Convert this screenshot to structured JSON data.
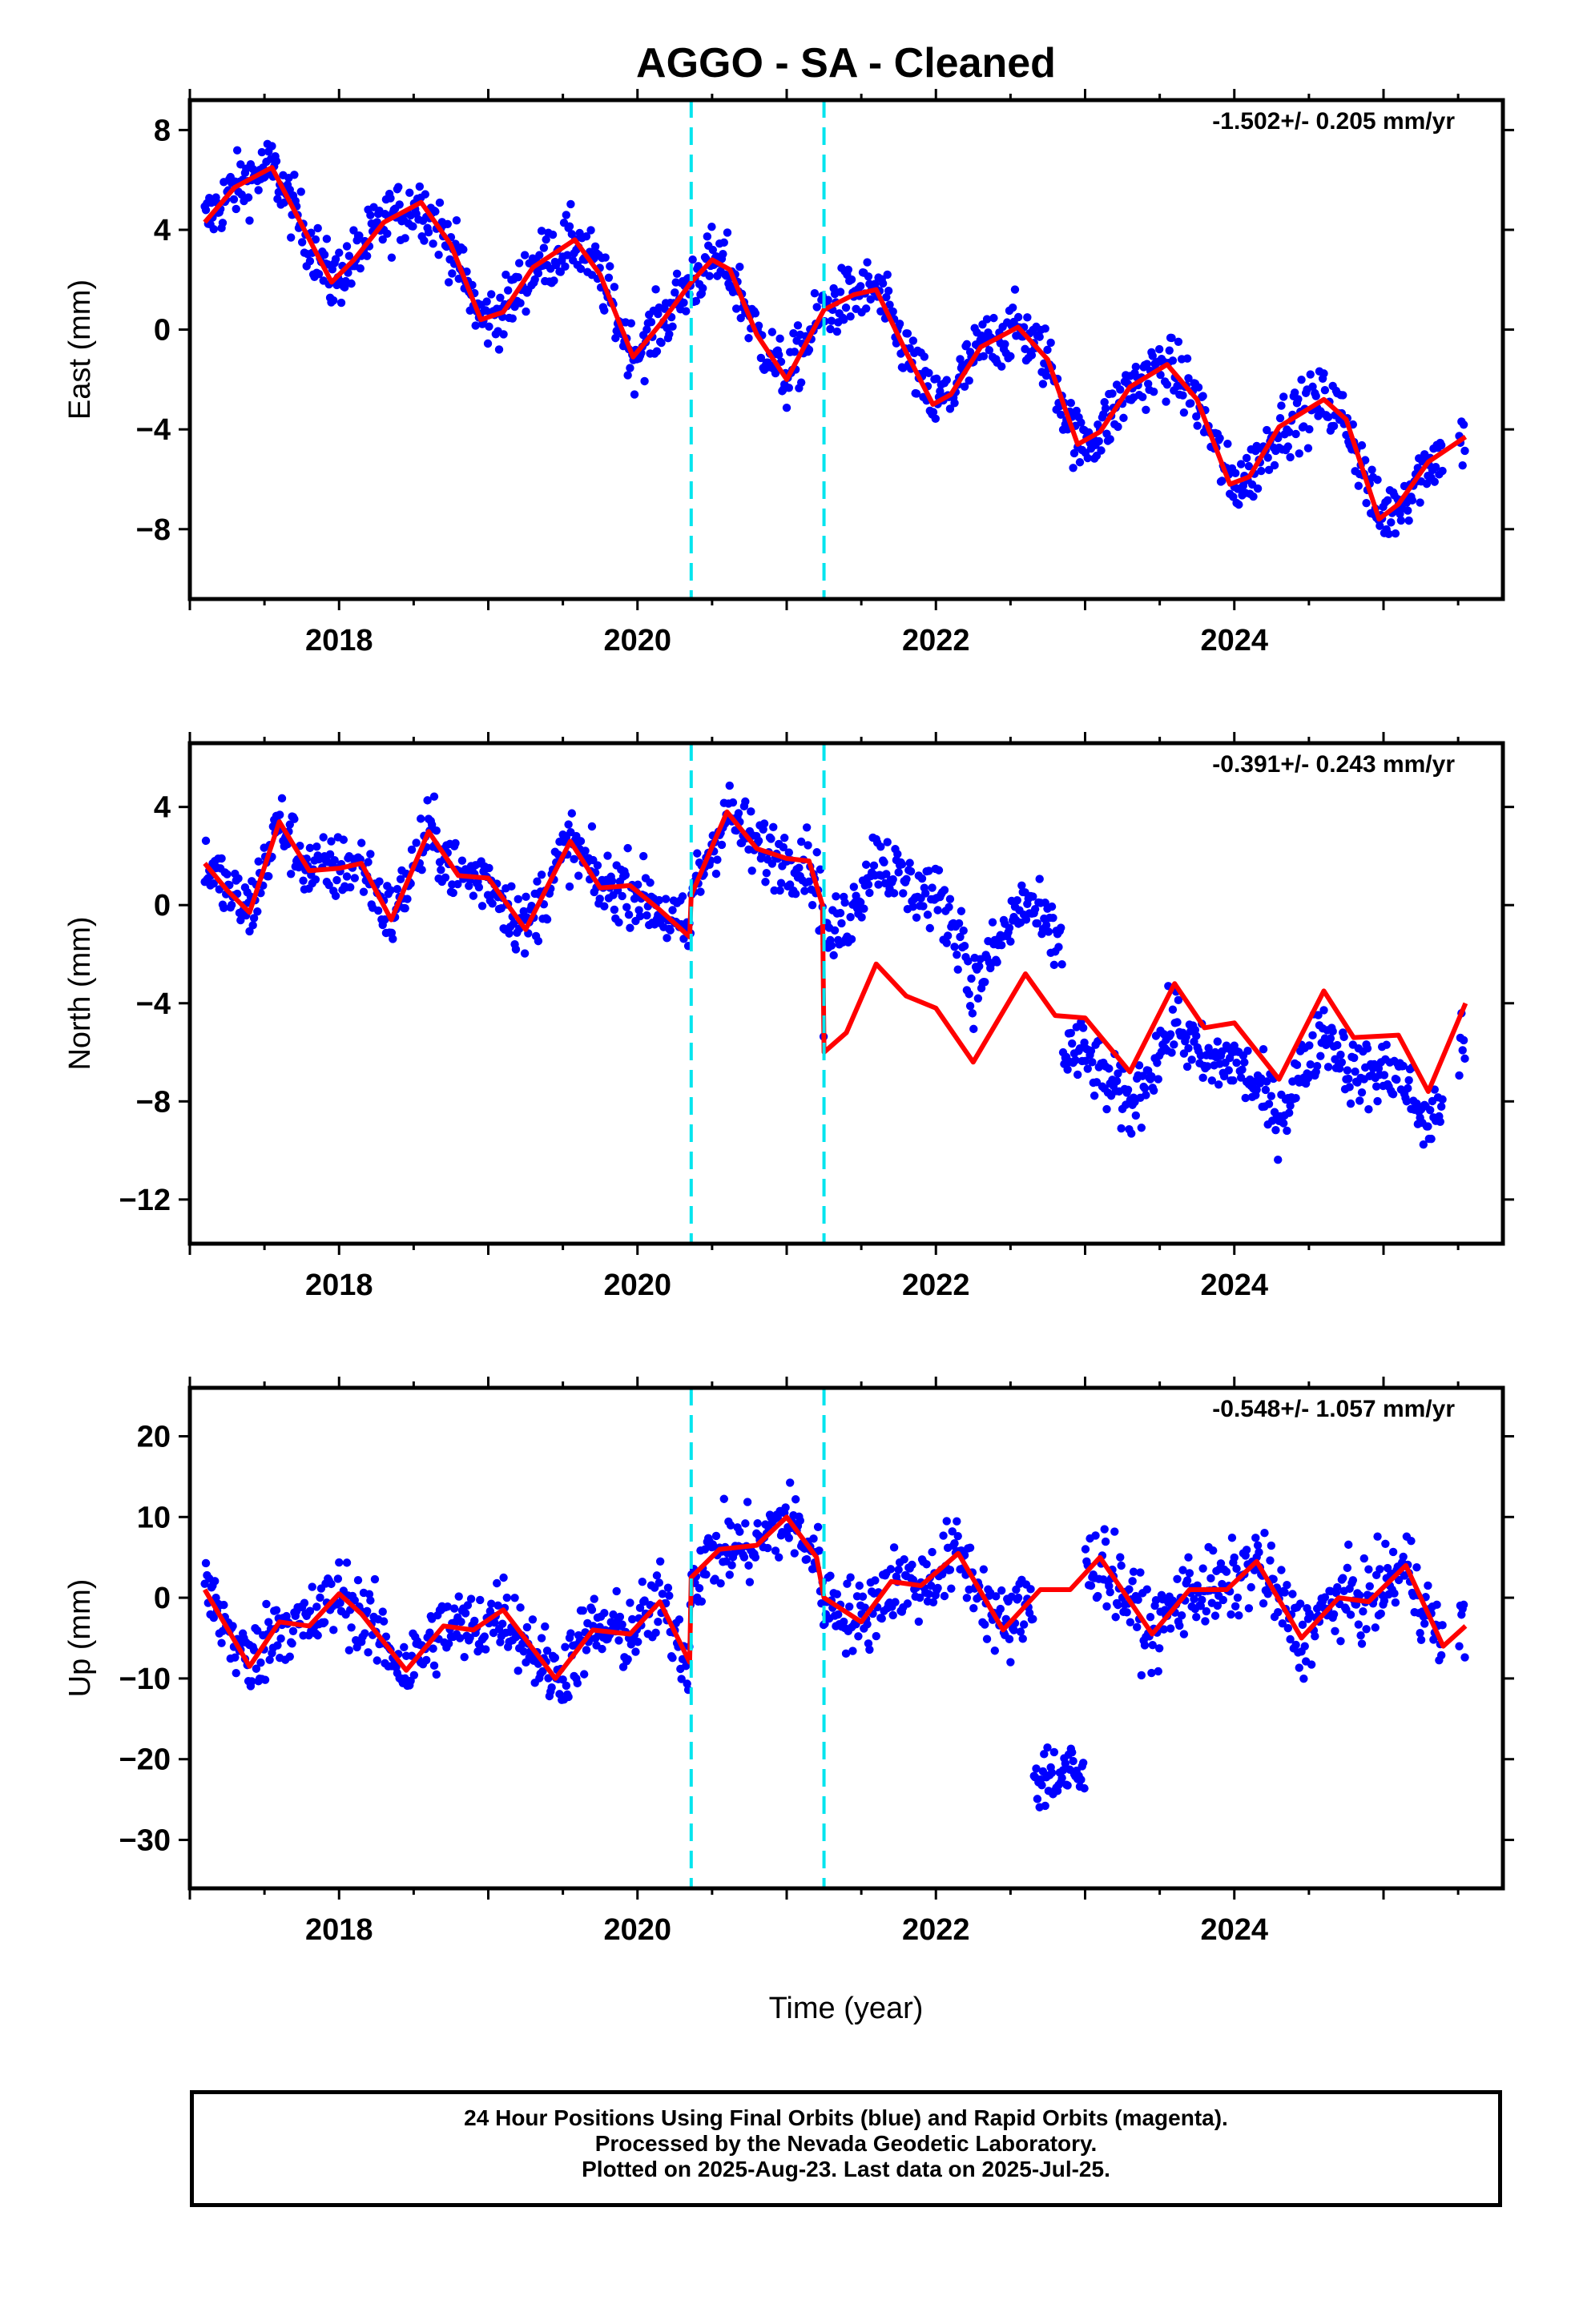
{
  "title": "AGGO  - SA - Cleaned",
  "xlabel": "Time (year)",
  "footer": {
    "line1": "24 Hour Positions Using Final Orbits (blue) and Rapid Orbits (magenta).",
    "line2": "Processed by the Nevada Geodetic Laboratory.",
    "line3": "Plotted on 2025-Aug-23. Last data on 2025-Jul-25."
  },
  "colors": {
    "data": "#0000ff",
    "model": "#ff0000",
    "steps": "#00e5ee"
  },
  "chart_data": [
    {
      "type": "scatter",
      "ylabel": "East (mm)",
      "rate_label": "-1.502+/- 0.205 mm/yr",
      "xlim": [
        2017.0,
        2025.8
      ],
      "ylim": [
        -10.8,
        9.2
      ],
      "x_ticks": [
        2018,
        2020,
        2022,
        2024
      ],
      "y_ticks": [
        8,
        4,
        0,
        -4,
        -8
      ],
      "y_tick_labels": [
        "8",
        "4",
        "0",
        "−4",
        "−8"
      ],
      "step_epochs": [
        2020.36,
        2021.25
      ],
      "model": {
        "x": [
          2017.1,
          2017.3,
          2017.55,
          2017.75,
          2017.95,
          2018.1,
          2018.3,
          2018.55,
          2018.75,
          2018.95,
          2019.1,
          2019.3,
          2019.58,
          2019.75,
          2019.97,
          2020.15,
          2020.36,
          2020.5,
          2020.62,
          2020.8,
          2021.0,
          2021.25,
          2021.45,
          2021.6,
          2021.8,
          2021.98,
          2022.1,
          2022.3,
          2022.55,
          2022.75,
          2022.95,
          2023.1,
          2023.3,
          2023.55,
          2023.75,
          2023.97,
          2024.1,
          2024.3,
          2024.6,
          2024.75,
          2024.97,
          2025.1,
          2025.3,
          2025.55
        ],
        "y": [
          4.3,
          5.7,
          6.5,
          4.2,
          1.9,
          2.8,
          4.3,
          5.1,
          3.4,
          0.4,
          0.7,
          2.5,
          3.6,
          2.2,
          -1.1,
          0.2,
          1.9,
          2.8,
          2.4,
          -0.2,
          -2.0,
          0.8,
          1.4,
          1.6,
          -0.9,
          -3.0,
          -2.6,
          -0.7,
          0.1,
          -1.2,
          -4.6,
          -4.1,
          -2.3,
          -1.4,
          -2.8,
          -6.2,
          -5.9,
          -3.9,
          -2.8,
          -3.6,
          -7.6,
          -7.0,
          -5.3,
          -4.3
        ]
      },
      "scatter_spread": 1.2
    },
    {
      "type": "scatter",
      "ylabel": "North (mm)",
      "rate_label": "-0.391+/- 0.243 mm/yr",
      "xlim": [
        2017.0,
        2025.8
      ],
      "ylim": [
        -13.8,
        6.6
      ],
      "x_ticks": [
        2018,
        2020,
        2022,
        2024
      ],
      "y_ticks": [
        4,
        0,
        -4,
        -8,
        -12
      ],
      "y_tick_labels": [
        "4",
        "0",
        "−4",
        "−8",
        "−12"
      ],
      "step_epochs": [
        2020.36,
        2021.25
      ],
      "model": {
        "x": [
          2017.1,
          2017.25,
          2017.4,
          2017.6,
          2017.8,
          2018.0,
          2018.15,
          2018.35,
          2018.6,
          2018.8,
          2019.0,
          2019.25,
          2019.55,
          2019.75,
          2019.95,
          2020.15,
          2020.35,
          2020.36,
          2020.6,
          2020.8,
          2021.0,
          2021.15,
          2021.24,
          2021.25,
          2021.4,
          2021.6,
          2021.8,
          2022.0,
          2022.25,
          2022.6,
          2022.8,
          2023.0,
          2023.3,
          2023.6,
          2023.8,
          2024.0,
          2024.3,
          2024.6,
          2024.8,
          2025.1,
          2025.3,
          2025.55
        ],
        "y": [
          1.7,
          0.6,
          -0.3,
          3.4,
          1.4,
          1.5,
          1.7,
          -0.6,
          3.0,
          1.2,
          1.1,
          -1.0,
          2.6,
          0.7,
          0.8,
          -0.2,
          -1.3,
          0.4,
          3.8,
          2.3,
          1.9,
          1.8,
          0.0,
          -6.0,
          -5.2,
          -2.4,
          -3.7,
          -4.2,
          -6.4,
          -2.8,
          -4.5,
          -4.6,
          -6.8,
          -3.2,
          -5.0,
          -4.8,
          -7.1,
          -3.5,
          -5.4,
          -5.3,
          -7.6,
          -4.0
        ]
      },
      "scatter_spread": 1.3
    },
    {
      "type": "scatter",
      "ylabel": "Up (mm)",
      "rate_label": "-0.548+/- 1.057 mm/yr",
      "xlim": [
        2017.0,
        2025.8
      ],
      "ylim": [
        -36,
        26
      ],
      "x_ticks": [
        2018,
        2020,
        2022,
        2024
      ],
      "y_ticks": [
        20,
        10,
        0,
        -10,
        -20,
        -30
      ],
      "y_tick_labels": [
        "20",
        "10",
        "0",
        "−10",
        "−20",
        "−30"
      ],
      "step_epochs": [
        2020.36,
        2021.25
      ],
      "model": {
        "x": [
          2017.1,
          2017.4,
          2017.6,
          2017.8,
          2018.0,
          2018.15,
          2018.45,
          2018.7,
          2018.9,
          2019.1,
          2019.45,
          2019.7,
          2019.95,
          2020.15,
          2020.35,
          2020.36,
          2020.55,
          2020.8,
          2021.0,
          2021.2,
          2021.25,
          2021.5,
          2021.7,
          2021.9,
          2022.15,
          2022.45,
          2022.7,
          2022.9,
          2023.1,
          2023.45,
          2023.7,
          2023.95,
          2024.15,
          2024.45,
          2024.7,
          2024.9,
          2025.15,
          2025.4,
          2025.55
        ],
        "y": [
          1.0,
          -8.5,
          -3.0,
          -3.5,
          0.5,
          -2.0,
          -9.0,
          -3.5,
          -4.0,
          -1.5,
          -10.0,
          -4.0,
          -4.5,
          -0.5,
          -8.0,
          2.5,
          6.0,
          6.5,
          10.0,
          5.0,
          0.0,
          -3.0,
          2.0,
          1.5,
          5.5,
          -4.0,
          1.0,
          1.0,
          5.0,
          -4.5,
          1.0,
          1.0,
          4.5,
          -5.0,
          0.0,
          -0.5,
          4.0,
          -6.0,
          -3.5
        ]
      },
      "scatter_spread": 4.5
    }
  ]
}
